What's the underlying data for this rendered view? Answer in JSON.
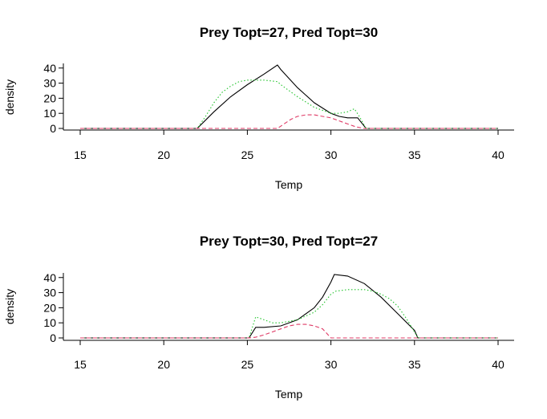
{
  "chart_data": [
    {
      "type": "line",
      "title": "Prey Topt=27, Pred Topt=30",
      "xlabel": "Temp",
      "ylabel": "density",
      "xlim": [
        15,
        40
      ],
      "ylim": [
        0,
        42
      ],
      "xticks": [
        "15",
        "20",
        "25",
        "30",
        "35",
        "40"
      ],
      "yticks": [
        "0",
        "10",
        "20",
        "30",
        "40"
      ],
      "grid": false,
      "series": [
        {
          "color": "#000000",
          "dash": "solid",
          "points": [
            [
              15,
              0
            ],
            [
              22,
              0
            ],
            [
              23,
              11
            ],
            [
              24,
              21
            ],
            [
              25,
              29
            ],
            [
              26,
              36
            ],
            [
              26.8,
              42
            ],
            [
              27,
              39
            ],
            [
              28,
              27
            ],
            [
              29,
              17
            ],
            [
              30,
              10
            ],
            [
              30.5,
              8
            ],
            [
              31,
              7
            ],
            [
              31.6,
              7
            ],
            [
              32.1,
              0
            ],
            [
              40,
              0
            ]
          ]
        },
        {
          "color": "#22c42c",
          "dash": "dotted",
          "points": [
            [
              15,
              0
            ],
            [
              22,
              0
            ],
            [
              22.5,
              8
            ],
            [
              23,
              17
            ],
            [
              23.5,
              24
            ],
            [
              24,
              28
            ],
            [
              24.5,
              31
            ],
            [
              25,
              32
            ],
            [
              26,
              32
            ],
            [
              26.8,
              31
            ],
            [
              27,
              29
            ],
            [
              28,
              21
            ],
            [
              29,
              14
            ],
            [
              30,
              10
            ],
            [
              30.5,
              10
            ],
            [
              31,
              11
            ],
            [
              31.4,
              13
            ],
            [
              31.7,
              8
            ],
            [
              32.1,
              0
            ],
            [
              40,
              0
            ]
          ]
        },
        {
          "color": "#df3a66",
          "dash": "dashed",
          "points": [
            [
              15,
              0
            ],
            [
              26.8,
              0
            ],
            [
              27.2,
              3
            ],
            [
              27.6,
              6
            ],
            [
              28,
              8
            ],
            [
              28.5,
              9
            ],
            [
              29,
              9
            ],
            [
              29.5,
              8
            ],
            [
              30,
              7
            ],
            [
              30.5,
              5
            ],
            [
              31,
              3
            ],
            [
              31.5,
              1
            ],
            [
              32,
              0
            ],
            [
              40,
              0
            ]
          ]
        }
      ]
    },
    {
      "type": "line",
      "title": "Prey Topt=30, Pred Topt=27",
      "xlabel": "Temp",
      "ylabel": "density",
      "xlim": [
        15,
        40
      ],
      "ylim": [
        0,
        42
      ],
      "xticks": [
        "15",
        "20",
        "25",
        "30",
        "35",
        "40"
      ],
      "yticks": [
        "0",
        "10",
        "20",
        "30",
        "40"
      ],
      "grid": false,
      "series": [
        {
          "color": "#000000",
          "dash": "solid",
          "points": [
            [
              15,
              0
            ],
            [
              25.1,
              0
            ],
            [
              25.5,
              7
            ],
            [
              26,
              7
            ],
            [
              27,
              8
            ],
            [
              28,
              12
            ],
            [
              29,
              20
            ],
            [
              29.5,
              27
            ],
            [
              30,
              37
            ],
            [
              30.2,
              42
            ],
            [
              31,
              41
            ],
            [
              32,
              36
            ],
            [
              33,
              27
            ],
            [
              34,
              16
            ],
            [
              35,
              5
            ],
            [
              35.2,
              0
            ],
            [
              40,
              0
            ]
          ]
        },
        {
          "color": "#22c42c",
          "dash": "dotted",
          "points": [
            [
              15,
              0
            ],
            [
              25.1,
              0
            ],
            [
              25.5,
              14
            ],
            [
              26,
              12
            ],
            [
              26.5,
              10
            ],
            [
              27,
              10
            ],
            [
              27.5,
              11
            ],
            [
              28,
              12
            ],
            [
              29,
              17
            ],
            [
              29.5,
              22
            ],
            [
              30,
              29
            ],
            [
              30.3,
              31
            ],
            [
              31,
              32
            ],
            [
              32,
              32
            ],
            [
              32.5,
              31
            ],
            [
              33,
              29
            ],
            [
              33.5,
              26
            ],
            [
              34,
              21
            ],
            [
              34.5,
              13
            ],
            [
              35,
              4
            ],
            [
              35.2,
              0
            ],
            [
              40,
              0
            ]
          ]
        },
        {
          "color": "#df3a66",
          "dash": "dashed",
          "points": [
            [
              15,
              0
            ],
            [
              25.1,
              0
            ],
            [
              25.5,
              0.5
            ],
            [
              26,
              2
            ],
            [
              26.5,
              4
            ],
            [
              27,
              6
            ],
            [
              27.5,
              8
            ],
            [
              28,
              9
            ],
            [
              28.5,
              9
            ],
            [
              29,
              8
            ],
            [
              29.5,
              6
            ],
            [
              30,
              0
            ],
            [
              40,
              0
            ]
          ]
        }
      ]
    }
  ]
}
